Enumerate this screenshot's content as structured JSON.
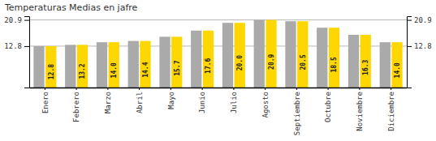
{
  "chart_data": {
    "type": "bar",
    "title": "Temperaturas Medias en jafre",
    "categories": [
      "Enero",
      "Febrero",
      "Marzo",
      "Abril",
      "Mayo",
      "Junio",
      "Julio",
      "Agosto",
      "Septiembre",
      "Octubre",
      "Noviembre",
      "Diciembre"
    ],
    "series": [
      {
        "color": "#AAAAAA",
        "values": [
          12.8,
          13.2,
          14.0,
          14.4,
          15.7,
          17.6,
          20.0,
          20.9,
          20.5,
          18.5,
          16.3,
          14.0
        ]
      },
      {
        "color": "#FFD700",
        "values": [
          12.8,
          13.2,
          14.0,
          14.4,
          15.7,
          17.6,
          20.0,
          20.9,
          20.5,
          18.5,
          16.3,
          14.0
        ],
        "value_labels": [
          "12.8",
          "13.2",
          "14.0",
          "14.4",
          "15.7",
          "17.6",
          "20.0",
          "20.9",
          "20.5",
          "18.5",
          "16.3",
          "14.0"
        ],
        "data_labels": true
      }
    ],
    "ylim": [
      0,
      22.0495
    ],
    "yticks": [
      12.8,
      20.9
    ],
    "y2lim": [
      0,
      22.0495
    ],
    "y2ticks": [
      12.8,
      20.9
    ],
    "grid": true
  }
}
